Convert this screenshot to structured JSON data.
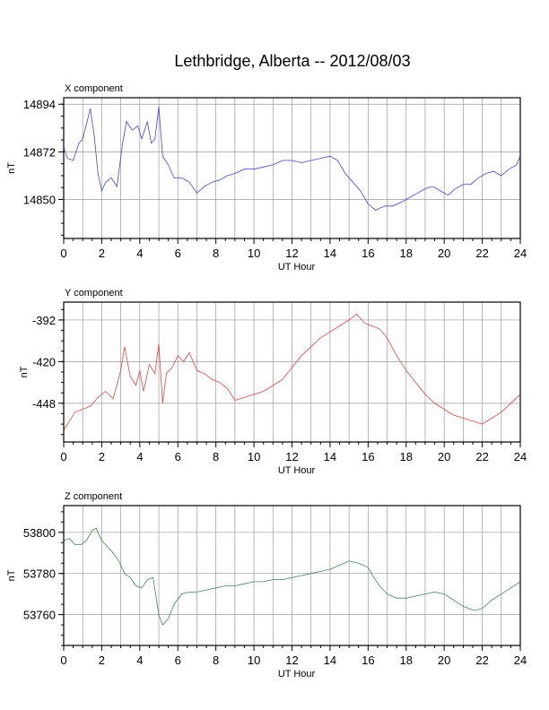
{
  "title": "Lethbridge, Alberta -- 2012/08/03",
  "chart_data": [
    {
      "type": "line",
      "panel_label": "X component",
      "xlabel": "UT Hour",
      "ylabel": "nT",
      "xlim": [
        0,
        24
      ],
      "ylim": [
        14832,
        14897
      ],
      "x_ticks": [
        "0",
        "2",
        "4",
        "6",
        "8",
        "10",
        "12",
        "14",
        "16",
        "18",
        "20",
        "22",
        "24"
      ],
      "y_ticks": [
        14850,
        14872,
        14894
      ],
      "grid": true,
      "series": [
        {
          "color": "#4444dd",
          "x": [
            0,
            0.2,
            0.5,
            0.8,
            1.0,
            1.2,
            1.4,
            1.6,
            1.8,
            2.0,
            2.2,
            2.5,
            2.8,
            3.1,
            3.3,
            3.6,
            3.9,
            4.1,
            4.4,
            4.6,
            4.8,
            5.0,
            5.2,
            5.5,
            5.8,
            6.2,
            6.6,
            7.0,
            7.4,
            7.8,
            8.2,
            8.6,
            9.0,
            9.5,
            10.0,
            10.5,
            11.0,
            11.5,
            12.0,
            12.5,
            13.0,
            13.5,
            14.0,
            14.4,
            14.8,
            15.2,
            15.6,
            16.0,
            16.4,
            16.6,
            16.9,
            17.3,
            17.8,
            18.2,
            18.6,
            19.0,
            19.4,
            19.8,
            20.2,
            20.6,
            21.0,
            21.4,
            21.8,
            22.2,
            22.6,
            23.0,
            23.4,
            23.8,
            24.0
          ],
          "values": [
            14874,
            14869,
            14868,
            14876,
            14878,
            14885,
            14892,
            14880,
            14862,
            14854,
            14858,
            14860,
            14856,
            14876,
            14886,
            14882,
            14884,
            14878,
            14886,
            14876,
            14878,
            14893,
            14870,
            14866,
            14860,
            14860,
            14858,
            14853,
            14856,
            14858,
            14859,
            14861,
            14862,
            14864,
            14864,
            14865,
            14866,
            14868,
            14868,
            14867,
            14868,
            14869,
            14870,
            14868,
            14862,
            14858,
            14854,
            14848,
            14845,
            14846,
            14847,
            14847,
            14849,
            14851,
            14853,
            14855,
            14856,
            14854,
            14852,
            14855,
            14857,
            14857,
            14860,
            14862,
            14863,
            14861,
            14864,
            14866,
            14870
          ]
        }
      ]
    },
    {
      "type": "line",
      "panel_label": "Y component",
      "xlabel": "UT Hour",
      "ylabel": "nT",
      "xlim": [
        0,
        24
      ],
      "ylim": [
        -474,
        -380
      ],
      "x_ticks": [
        "0",
        "2",
        "4",
        "6",
        "8",
        "10",
        "12",
        "14",
        "16",
        "18",
        "20",
        "22",
        "24"
      ],
      "y_ticks": [
        -392,
        -420,
        -448
      ],
      "grid": true,
      "series": [
        {
          "color": "#dd4444",
          "x": [
            0,
            0.3,
            0.6,
            1.0,
            1.4,
            1.8,
            2.2,
            2.6,
            3.0,
            3.2,
            3.5,
            3.8,
            4.0,
            4.2,
            4.5,
            4.8,
            5.0,
            5.2,
            5.4,
            5.7,
            6.0,
            6.3,
            6.6,
            7.0,
            7.4,
            7.8,
            8.2,
            8.6,
            9.0,
            9.5,
            10.0,
            10.5,
            11.0,
            11.5,
            12.0,
            12.5,
            13.0,
            13.5,
            14.0,
            14.5,
            15.0,
            15.4,
            15.8,
            16.2,
            16.6,
            17.0,
            17.5,
            18.0,
            18.5,
            19.0,
            19.5,
            20.0,
            20.5,
            21.0,
            21.5,
            22.0,
            22.5,
            23.0,
            23.5,
            24.0
          ],
          "values": [
            -466,
            -460,
            -454,
            -452,
            -450,
            -444,
            -440,
            -445,
            -426,
            -410,
            -430,
            -436,
            -426,
            -440,
            -422,
            -428,
            -408,
            -448,
            -428,
            -424,
            -416,
            -420,
            -414,
            -426,
            -428,
            -432,
            -434,
            -438,
            -446,
            -444,
            -442,
            -440,
            -436,
            -432,
            -424,
            -416,
            -410,
            -404,
            -400,
            -396,
            -392,
            -388,
            -394,
            -396,
            -398,
            -404,
            -416,
            -426,
            -434,
            -442,
            -448,
            -452,
            -456,
            -458,
            -460,
            -462,
            -458,
            -454,
            -448,
            -442
          ]
        }
      ]
    },
    {
      "type": "line",
      "panel_label": "Z component",
      "xlabel": "UT Hour",
      "ylabel": "nT",
      "xlim": [
        0,
        24
      ],
      "ylim": [
        53745,
        53813
      ],
      "x_ticks": [
        "0",
        "2",
        "4",
        "6",
        "8",
        "10",
        "12",
        "14",
        "16",
        "18",
        "20",
        "22",
        "24"
      ],
      "y_ticks": [
        53760,
        53780,
        53800
      ],
      "grid": true,
      "series": [
        {
          "color": "#3a8a5a",
          "x": [
            0,
            0.3,
            0.6,
            0.9,
            1.2,
            1.5,
            1.7,
            2.0,
            2.3,
            2.6,
            2.9,
            3.2,
            3.5,
            3.8,
            4.1,
            4.4,
            4.7,
            5.0,
            5.2,
            5.5,
            5.8,
            6.2,
            6.6,
            7.0,
            7.5,
            8.0,
            8.5,
            9.0,
            9.5,
            10.0,
            10.5,
            11.0,
            11.5,
            12.0,
            12.5,
            13.0,
            13.5,
            14.0,
            14.5,
            15.0,
            15.5,
            16.0,
            16.3,
            16.6,
            17.0,
            17.5,
            18.0,
            18.5,
            19.0,
            19.5,
            20.0,
            20.5,
            21.0,
            21.3,
            21.6,
            22.0,
            22.5,
            23.0,
            23.5,
            24.0
          ],
          "values": [
            53796,
            53797,
            53794,
            53794,
            53796,
            53801,
            53802,
            53796,
            53793,
            53790,
            53786,
            53780,
            53778,
            53774,
            53773,
            53777,
            53778,
            53760,
            53755,
            53758,
            53765,
            53770,
            53771,
            53771,
            53772,
            53773,
            53774,
            53774,
            53775,
            53776,
            53776,
            53777,
            53777,
            53778,
            53779,
            53780,
            53781,
            53782,
            53784,
            53786,
            53785,
            53783,
            53778,
            53774,
            53770,
            53768,
            53768,
            53769,
            53770,
            53771,
            53770,
            53767,
            53764,
            53763,
            53762,
            53763,
            53767,
            53770,
            53773,
            53776
          ]
        }
      ]
    }
  ]
}
